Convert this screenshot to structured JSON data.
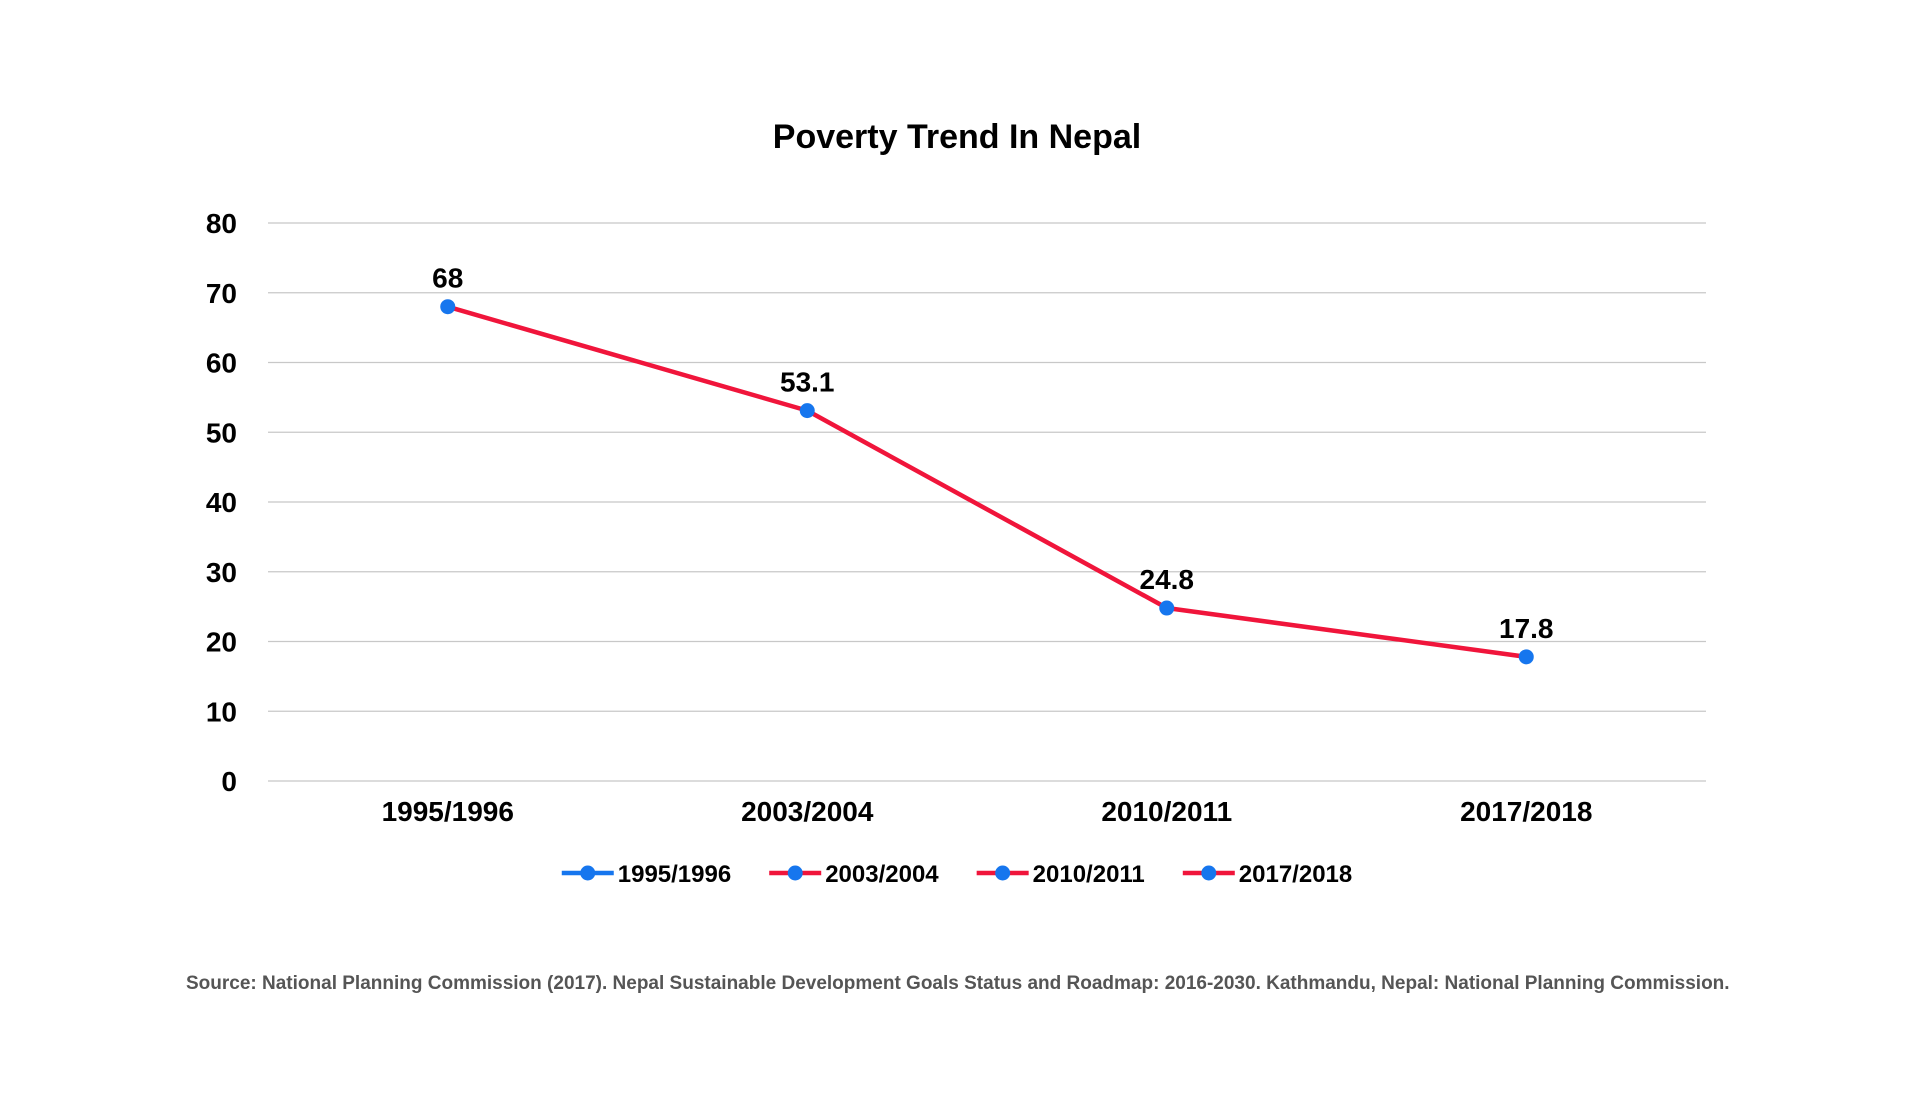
{
  "colors": {
    "line": "#F0153B",
    "marker": "#1676EE",
    "legend_first_line": "#1676EE",
    "grid": "#C8C8C8",
    "text": "#000000",
    "source_text": "#555555"
  },
  "source_note": "Source:  National Planning Commission (2017). Nepal Sustainable Development Goals Status and Roadmap: 2016-2030. Kathmandu, Nepal: National Planning Commission.",
  "chart_data": {
    "type": "line",
    "title": "Poverty Trend In Nepal",
    "xlabel": "",
    "ylabel": "",
    "categories": [
      "1995/1996",
      "2003/2004",
      "2010/2011",
      "2017/2018"
    ],
    "series": [
      {
        "values": [
          68,
          53.1,
          24.8,
          17.8
        ],
        "data_labels": [
          "68",
          "53.1",
          "24.8",
          "17.8"
        ]
      }
    ],
    "ylim": [
      0,
      80
    ],
    "yticks": [
      0,
      10,
      20,
      30,
      40,
      50,
      60,
      70,
      80
    ],
    "grid": true,
    "legend": {
      "position": "bottom",
      "entries": [
        "1995/1996",
        "2003/2004",
        "2010/2011",
        "2017/2018"
      ]
    }
  }
}
